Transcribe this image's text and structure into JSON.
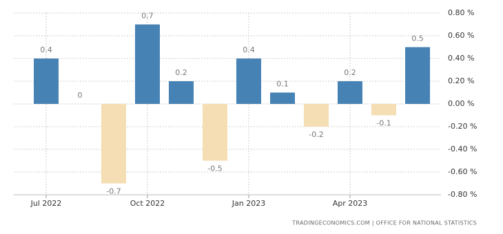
{
  "chart_data": {
    "type": "bar",
    "categories": [
      "Jul 2022",
      null,
      null,
      "Oct 2022",
      null,
      null,
      "Jan 2023",
      null,
      null,
      "Apr 2023",
      null,
      null
    ],
    "values": [
      0.4,
      0,
      -0.7,
      0.7,
      0.2,
      -0.5,
      0.4,
      0.1,
      -0.2,
      0.2,
      -0.1,
      0.5
    ],
    "color": "#4682b4",
    "negative_color": "#f5deb3",
    "ylim": [
      -0.8,
      0.8
    ],
    "yticks": [
      {
        "value": -0.8,
        "label": "-0.80 %"
      },
      {
        "value": -0.6,
        "label": "-0.60 %"
      },
      {
        "value": -0.4,
        "label": "-0.40 %"
      },
      {
        "value": -0.2,
        "label": "-0.20 %"
      },
      {
        "value": 0,
        "label": "0.00 %"
      },
      {
        "value": 0.2,
        "label": "0.20 %"
      },
      {
        "value": 0.4,
        "label": "0.40 %"
      },
      {
        "value": 0.6,
        "label": "0.60 %"
      },
      {
        "value": 0.8,
        "label": "0.80 %"
      }
    ],
    "grid": true,
    "source": "TRADINGECONOMICS.COM | OFFICE FOR NATIONAL STATISTICS"
  }
}
